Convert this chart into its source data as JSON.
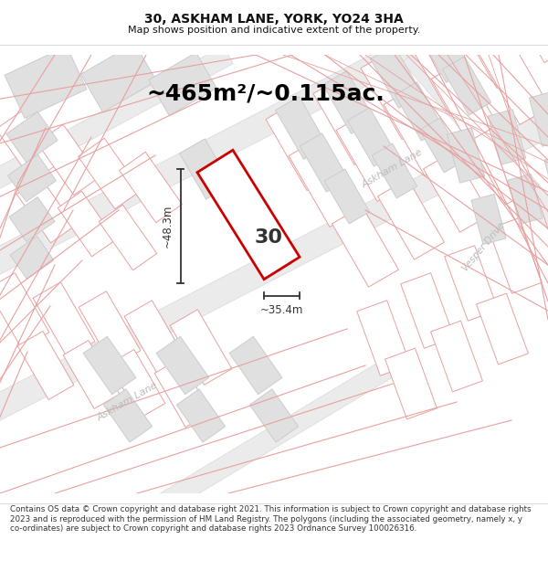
{
  "title": "30, ASKHAM LANE, YORK, YO24 3HA",
  "subtitle": "Map shows position and indicative extent of the property.",
  "area_text": "~465m²/~0.115ac.",
  "dim_width": "~35.4m",
  "dim_height": "~48.3m",
  "property_number": "30",
  "footer": "Contains OS data © Crown copyright and database right 2021. This information is subject to Crown copyright and database rights 2023 and is reproduced with the permission of HM Land Registry. The polygons (including the associated geometry, namely x, y co-ordinates) are subject to Crown copyright and database rights 2023 Ordnance Survey 100026316.",
  "map_bg": "#ffffff",
  "road_fill": "#ebebeb",
  "road_edge": "#d8d8d8",
  "parcel_edge": "#e8a0a0",
  "building_fill": "#e0e0e0",
  "building_edge": "#cccccc",
  "plot_edge": "#cc0000",
  "dim_line_color": "#333333",
  "road_label_color": "#bbbbbb",
  "text_color": "#111111",
  "footer_color": "#333333",
  "title_fontsize": 10,
  "subtitle_fontsize": 8,
  "area_fontsize": 18,
  "dim_fontsize": 8.5,
  "num_fontsize": 16,
  "road_label_fontsize": 8,
  "footer_fontsize": 6.3
}
